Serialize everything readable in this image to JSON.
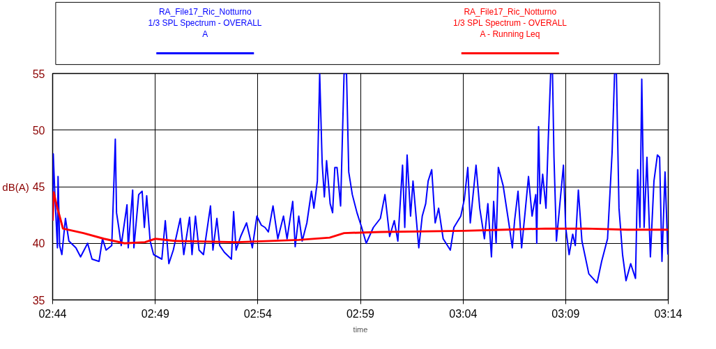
{
  "chart_data": {
    "type": "line",
    "ylabel": "dB(A)",
    "xlabel": "time",
    "legend": "top",
    "grid": true,
    "marker": "none",
    "line_style": "solid",
    "xlim": [
      2.7333,
      3.2333
    ],
    "xticks": [
      {
        "value": 2.7333,
        "label": "02:44"
      },
      {
        "value": 2.8167,
        "label": "02:49"
      },
      {
        "value": 2.9,
        "label": "02:54"
      },
      {
        "value": 2.9833,
        "label": "02:59"
      },
      {
        "value": 3.0667,
        "label": "03:04"
      },
      {
        "value": 3.15,
        "label": "03:09"
      },
      {
        "value": 3.2333,
        "label": "03:14"
      }
    ],
    "ylim": [
      35,
      55
    ],
    "yticks": [
      35,
      40,
      45,
      50,
      55
    ],
    "series": [
      {
        "name": "RA_File17_Ric_Notturno\n1/3 SPL Spectrum - OVERALL\nA",
        "color": "#0000ff",
        "x": [
          2.7333,
          2.7338,
          2.7352,
          2.7372,
          2.7377,
          2.739,
          2.7408,
          2.7437,
          2.7465,
          2.7522,
          2.756,
          2.7617,
          2.7653,
          2.771,
          2.7738,
          2.7767,
          2.7813,
          2.7823,
          2.7842,
          2.7852,
          2.787,
          2.789,
          2.7908,
          2.7937,
          2.7947,
          2.7983,
          2.7993,
          2.8032,
          2.806,
          2.8078,
          2.8097,
          2.8125,
          2.8153,
          2.822,
          2.8248,
          2.8277,
          2.8313,
          2.837,
          2.8398,
          2.8445,
          2.8465,
          2.8493,
          2.8522,
          2.8558,
          2.8615,
          2.8635,
          2.8667,
          2.869,
          2.8728,
          2.8785,
          2.8803,
          2.8823,
          2.886,
          2.8908,
          2.8955,
          2.8992,
          2.9028,
          2.9058,
          2.9085,
          2.9123,
          2.9162,
          2.9208,
          2.9237,
          2.9283,
          2.9303,
          2.9332,
          2.936,
          2.9398,
          2.9435,
          2.9455,
          2.9483,
          2.9502,
          2.9522,
          2.954,
          2.9558,
          2.9587,
          2.9607,
          2.9625,
          2.9643,
          2.9672,
          2.97,
          2.972,
          2.9738,
          2.9767,
          2.9805,
          2.9843,
          2.988,
          2.9938,
          2.9995,
          3.0032,
          3.007,
          3.0108,
          3.0137,
          3.0175,
          3.0193,
          3.0212,
          3.024,
          3.026,
          3.0307,
          3.0335,
          3.0363,
          3.0383,
          3.0412,
          3.044,
          3.0468,
          3.0505,
          3.0563,
          3.0592,
          3.0648,
          3.0677,
          3.0705,
          3.0725,
          3.0772,
          3.0802,
          3.084,
          3.0868,
          3.0897,
          3.0915,
          3.0935,
          3.0953,
          3.0992,
          3.1038,
          3.1067,
          3.1085,
          3.1113,
          3.1142,
          3.117,
          3.1198,
          3.1227,
          3.1257,
          3.1265,
          3.128,
          3.1293,
          3.1313,
          3.134,
          3.1358,
          3.1378,
          3.1393,
          3.1405,
          3.1425,
          3.1453,
          3.1482,
          3.15,
          3.1528,
          3.1557,
          3.1578,
          3.1603,
          3.1632,
          3.1688,
          3.1755,
          3.1792,
          3.184,
          3.1877,
          3.1897,
          3.1912,
          3.1933,
          3.1962,
          3.199,
          3.2028,
          3.2067,
          3.2085,
          3.2103,
          3.2118,
          3.2137,
          3.216,
          3.2188,
          3.2217,
          3.2245,
          3.2263,
          3.2282,
          3.2307,
          3.233
        ],
        "values": [
          42.0,
          47.9,
          44.1,
          39.6,
          45.9,
          39.8,
          39.0,
          42.2,
          40.2,
          39.6,
          38.8,
          40.0,
          38.6,
          38.4,
          40.4,
          39.4,
          39.8,
          42.9,
          49.2,
          42.7,
          41.4,
          39.8,
          41.2,
          43.4,
          39.6,
          44.7,
          39.6,
          44.3,
          44.6,
          41.4,
          44.2,
          40.2,
          39.0,
          38.6,
          42.0,
          38.2,
          39.4,
          42.2,
          39.0,
          42.3,
          39.0,
          42.4,
          39.4,
          39.0,
          43.3,
          39.4,
          42.2,
          39.8,
          39.2,
          38.6,
          42.8,
          39.4,
          40.6,
          41.8,
          39.6,
          42.4,
          41.6,
          41.4,
          41.0,
          43.3,
          40.4,
          42.4,
          40.4,
          43.7,
          39.7,
          42.4,
          40.2,
          41.8,
          44.6,
          43.1,
          45.5,
          55,
          47.1,
          44.1,
          47.3,
          43.5,
          42.7,
          46.7,
          46.7,
          43.3,
          55,
          55,
          46.3,
          44.3,
          42.7,
          41.4,
          40.0,
          41.4,
          42.2,
          44.3,
          40.6,
          42.0,
          40.2,
          46.9,
          41.4,
          47.8,
          42.4,
          45.5,
          39.6,
          42.4,
          43.5,
          45.5,
          46.5,
          41.8,
          43.1,
          40.4,
          39.4,
          41.4,
          42.4,
          43.9,
          46.7,
          41.8,
          46.9,
          43.1,
          40.4,
          43.5,
          38.8,
          43.7,
          40.0,
          46.7,
          45.1,
          41.8,
          39.6,
          42.0,
          44.6,
          39.6,
          42.7,
          45.9,
          42.4,
          44.3,
          40.0,
          50.3,
          43.5,
          46.1,
          43.1,
          49.0,
          55,
          55,
          47.6,
          40.2,
          43.5,
          46.9,
          41.4,
          39.0,
          40.8,
          39.8,
          44.7,
          40.2,
          37.3,
          36.5,
          38.4,
          40.4,
          48.0,
          55,
          55,
          43.1,
          39.0,
          36.7,
          38.2,
          36.9,
          46.5,
          41.4,
          54.5,
          41.4,
          47.6,
          38.8,
          45.5,
          47.8,
          47.6,
          38.4,
          46.3,
          39.0
        ]
      },
      {
        "name": "RA_File17_Ric_Notturno\n1/3 SPL Spectrum - OVERALL\nA - Running Leq",
        "color": "#ff0000",
        "x": [
          2.7333,
          2.7342,
          2.7367,
          2.7417,
          2.7583,
          2.775,
          2.7917,
          2.8083,
          2.8167,
          2.8333,
          2.8833,
          2.9333,
          2.9583,
          2.97,
          3.0,
          3.0667,
          3.1,
          3.1333,
          3.1667,
          3.2,
          3.2333
        ],
        "values": [
          42.0,
          44.5,
          43.3,
          41.3,
          40.9,
          40.4,
          40.0,
          40.1,
          40.4,
          40.2,
          40.1,
          40.3,
          40.5,
          40.9,
          41.0,
          41.1,
          41.2,
          41.3,
          41.3,
          41.2,
          41.2
        ]
      }
    ]
  }
}
